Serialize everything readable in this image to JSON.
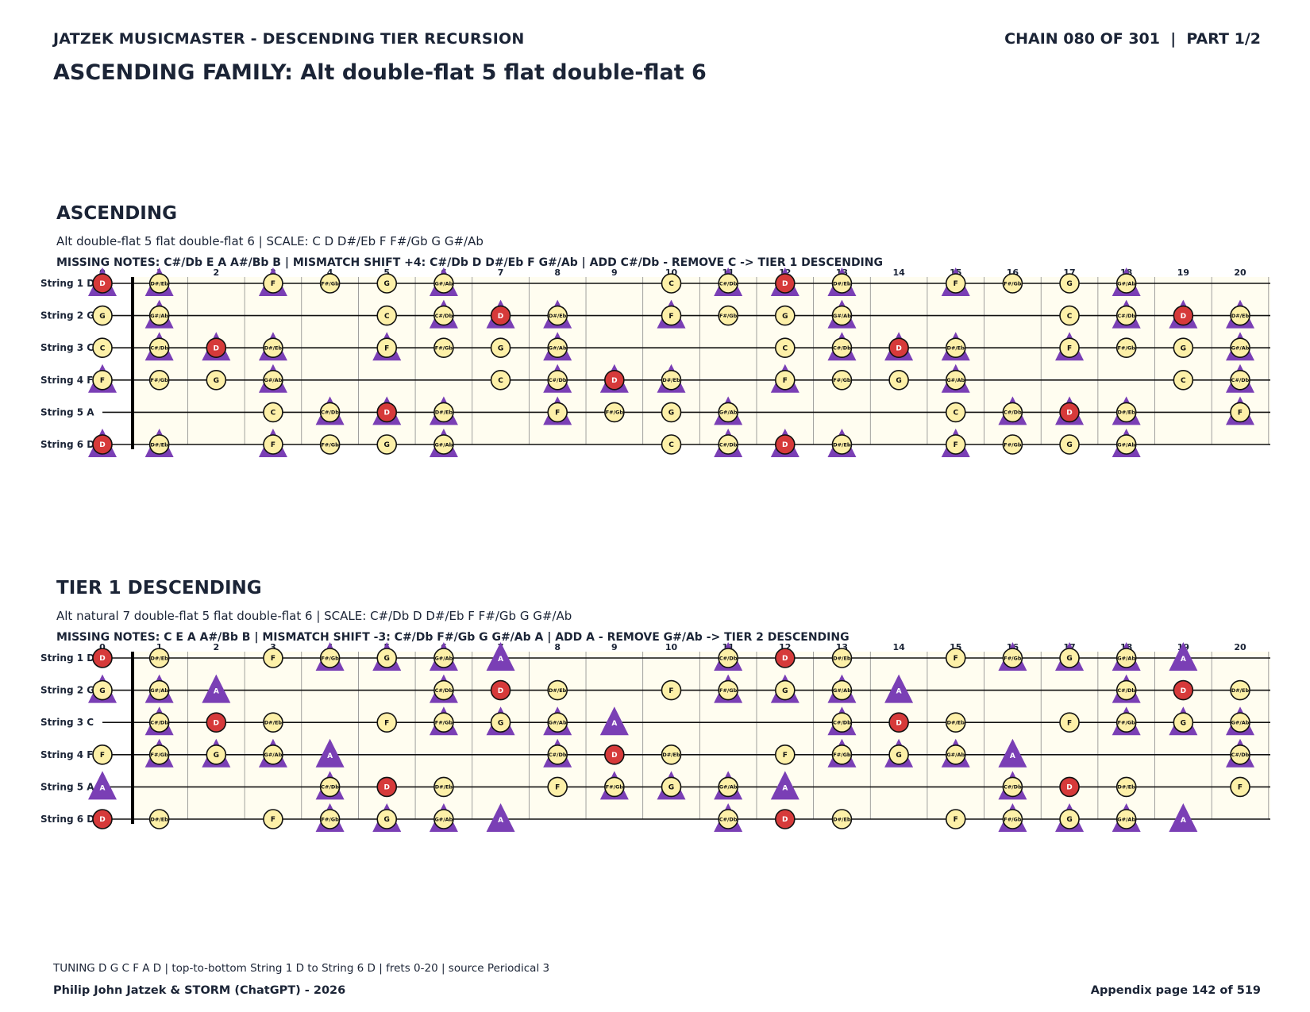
{
  "header": {
    "left": "JATZEK MUSICMASTER - DESCENDING TIER RECURSION",
    "right": "CHAIN 080 OF 301  |  PART 1/2",
    "family_title": "ASCENDING FAMILY: Alt double-flat 5 flat double-flat 6"
  },
  "fret_numbers": [
    "0",
    "1",
    "2",
    "3",
    "4",
    "5",
    "6",
    "7",
    "8",
    "9",
    "10",
    "11",
    "12",
    "13",
    "14",
    "15",
    "16",
    "17",
    "18",
    "19",
    "20"
  ],
  "colors": {
    "root": "#d63a3a",
    "note": "#fdf0a8",
    "marker": "#7a3fb5",
    "board": "#fffdf0",
    "ink": "#1b2436"
  },
  "sections": [
    {
      "title": "ASCENDING",
      "description": "Alt double-flat 5 flat double-flat 6  |  SCALE: C D D#/Eb F F#/Gb G G#/Ab",
      "missing": "MISSING NOTES: C#/Db E A A#/Bb B  |  MISMATCH SHIFT +4: C#/Db D D#/Eb F G#/Ab  |  ADD C#/Db - REMOVE C -> TIER 1 DESCENDING",
      "strings": [
        {
          "label": "String 1 D",
          "cells": [
            [
              "D",
              "T"
            ],
            [
              "D#/Eb",
              "T"
            ],
            [
              "",
              ""
            ],
            [
              "F",
              "T"
            ],
            [
              "F#/Gb",
              ""
            ],
            [
              "G",
              ""
            ],
            [
              "G#/Ab",
              "T"
            ],
            [
              "",
              ""
            ],
            [
              "",
              ""
            ],
            [
              "",
              ""
            ],
            [
              "C",
              ""
            ],
            [
              "C#/Db",
              "T"
            ],
            [
              "D",
              "T"
            ],
            [
              "D#/Eb",
              "T"
            ],
            [
              "",
              ""
            ],
            [
              "F",
              "T"
            ],
            [
              "F#/Gb",
              ""
            ],
            [
              "G",
              ""
            ],
            [
              "G#/Ab",
              "T"
            ],
            [
              "",
              ""
            ],
            [
              "",
              ""
            ]
          ]
        },
        {
          "label": "String 2 G",
          "cells": [
            [
              "G",
              ""
            ],
            [
              "G#/Ab",
              "T"
            ],
            [
              "",
              ""
            ],
            [
              "",
              ""
            ],
            [
              "",
              ""
            ],
            [
              "C",
              ""
            ],
            [
              "C#/Db",
              "T"
            ],
            [
              "D",
              "T"
            ],
            [
              "D#/Eb",
              "T"
            ],
            [
              "",
              ""
            ],
            [
              "F",
              "T"
            ],
            [
              "F#/Gb",
              ""
            ],
            [
              "G",
              ""
            ],
            [
              "G#/Ab",
              "T"
            ],
            [
              "",
              ""
            ],
            [
              "",
              ""
            ],
            [
              "",
              ""
            ],
            [
              "C",
              ""
            ],
            [
              "C#/Db",
              "T"
            ],
            [
              "D",
              "T"
            ],
            [
              "D#/Eb",
              "T"
            ]
          ]
        },
        {
          "label": "String 3 C",
          "cells": [
            [
              "C",
              ""
            ],
            [
              "C#/Db",
              "T"
            ],
            [
              "D",
              "T"
            ],
            [
              "D#/Eb",
              "T"
            ],
            [
              "",
              ""
            ],
            [
              "F",
              "T"
            ],
            [
              "F#/Gb",
              ""
            ],
            [
              "G",
              ""
            ],
            [
              "G#/Ab",
              "T"
            ],
            [
              "",
              ""
            ],
            [
              "",
              ""
            ],
            [
              "",
              ""
            ],
            [
              "C",
              ""
            ],
            [
              "C#/Db",
              "T"
            ],
            [
              "D",
              "T"
            ],
            [
              "D#/Eb",
              "T"
            ],
            [
              "",
              ""
            ],
            [
              "F",
              "T"
            ],
            [
              "F#/Gb",
              ""
            ],
            [
              "G",
              ""
            ],
            [
              "G#/Ab",
              "T"
            ]
          ]
        },
        {
          "label": "String 4 F",
          "cells": [
            [
              "F",
              "T"
            ],
            [
              "F#/Gb",
              ""
            ],
            [
              "G",
              ""
            ],
            [
              "G#/Ab",
              "T"
            ],
            [
              "",
              ""
            ],
            [
              "",
              ""
            ],
            [
              "",
              ""
            ],
            [
              "C",
              ""
            ],
            [
              "C#/Db",
              "T"
            ],
            [
              "D",
              "T"
            ],
            [
              "D#/Eb",
              "T"
            ],
            [
              "",
              ""
            ],
            [
              "F",
              "T"
            ],
            [
              "F#/Gb",
              ""
            ],
            [
              "G",
              ""
            ],
            [
              "G#/Ab",
              "T"
            ],
            [
              "",
              ""
            ],
            [
              "",
              ""
            ],
            [
              "",
              ""
            ],
            [
              "C",
              ""
            ],
            [
              "C#/Db",
              "T"
            ]
          ]
        },
        {
          "label": "String 5 A",
          "cells": [
            [
              "",
              ""
            ],
            [
              "",
              ""
            ],
            [
              "",
              ""
            ],
            [
              "C",
              ""
            ],
            [
              "C#/Db",
              "T"
            ],
            [
              "D",
              "T"
            ],
            [
              "D#/Eb",
              "T"
            ],
            [
              "",
              ""
            ],
            [
              "F",
              "T"
            ],
            [
              "F#/Gb",
              ""
            ],
            [
              "G",
              ""
            ],
            [
              "G#/Ab",
              "T"
            ],
            [
              "",
              ""
            ],
            [
              "",
              ""
            ],
            [
              "",
              ""
            ],
            [
              "C",
              ""
            ],
            [
              "C#/Db",
              "T"
            ],
            [
              "D",
              "T"
            ],
            [
              "D#/Eb",
              "T"
            ],
            [
              "",
              ""
            ],
            [
              "F",
              "T"
            ]
          ]
        },
        {
          "label": "String 6 D",
          "cells": [
            [
              "D",
              "T"
            ],
            [
              "D#/Eb",
              "T"
            ],
            [
              "",
              ""
            ],
            [
              "F",
              "T"
            ],
            [
              "F#/Gb",
              ""
            ],
            [
              "G",
              ""
            ],
            [
              "G#/Ab",
              "T"
            ],
            [
              "",
              ""
            ],
            [
              "",
              ""
            ],
            [
              "",
              ""
            ],
            [
              "C",
              ""
            ],
            [
              "C#/Db",
              "T"
            ],
            [
              "D",
              "T"
            ],
            [
              "D#/Eb",
              "T"
            ],
            [
              "",
              ""
            ],
            [
              "F",
              "T"
            ],
            [
              "F#/Gb",
              ""
            ],
            [
              "G",
              ""
            ],
            [
              "G#/Ab",
              "T"
            ],
            [
              "",
              ""
            ],
            [
              "",
              ""
            ]
          ]
        }
      ]
    },
    {
      "title": "TIER 1 DESCENDING",
      "description": "Alt natural 7 double-flat 5 flat double-flat 6  |  SCALE: C#/Db D D#/Eb F F#/Gb G G#/Ab",
      "missing": "MISSING NOTES: C E A A#/Bb B  |  MISMATCH SHIFT -3: C#/Db F#/Gb G G#/Ab A  |  ADD A - REMOVE G#/Ab -> TIER 2 DESCENDING",
      "strings": [
        {
          "label": "String 1 D",
          "cells": [
            [
              "D",
              ""
            ],
            [
              "D#/Eb",
              ""
            ],
            [
              "",
              ""
            ],
            [
              "F",
              ""
            ],
            [
              "F#/Gb",
              "T"
            ],
            [
              "G",
              "T"
            ],
            [
              "G#/Ab",
              "T"
            ],
            [
              "A",
              "T"
            ],
            [
              "",
              ""
            ],
            [
              "",
              ""
            ],
            [
              "",
              ""
            ],
            [
              "C#/Db",
              "T"
            ],
            [
              "D",
              ""
            ],
            [
              "D#/Eb",
              ""
            ],
            [
              "",
              ""
            ],
            [
              "F",
              ""
            ],
            [
              "F#/Gb",
              "T"
            ],
            [
              "G",
              "T"
            ],
            [
              "G#/Ab",
              "T"
            ],
            [
              "A",
              "T"
            ],
            [
              "",
              ""
            ]
          ]
        },
        {
          "label": "String 2 G",
          "cells": [
            [
              "G",
              "T"
            ],
            [
              "G#/Ab",
              "T"
            ],
            [
              "A",
              "T"
            ],
            [
              "",
              ""
            ],
            [
              "",
              ""
            ],
            [
              "",
              ""
            ],
            [
              "C#/Db",
              "T"
            ],
            [
              "D",
              ""
            ],
            [
              "D#/Eb",
              ""
            ],
            [
              "",
              ""
            ],
            [
              "F",
              ""
            ],
            [
              "F#/Gb",
              "T"
            ],
            [
              "G",
              "T"
            ],
            [
              "G#/Ab",
              "T"
            ],
            [
              "A",
              "T"
            ],
            [
              "",
              ""
            ],
            [
              "",
              ""
            ],
            [
              "",
              ""
            ],
            [
              "C#/Db",
              "T"
            ],
            [
              "D",
              ""
            ],
            [
              "D#/Eb",
              ""
            ]
          ]
        },
        {
          "label": "String 3 C",
          "cells": [
            [
              "",
              ""
            ],
            [
              "C#/Db",
              "T"
            ],
            [
              "D",
              ""
            ],
            [
              "D#/Eb",
              ""
            ],
            [
              "",
              ""
            ],
            [
              "F",
              ""
            ],
            [
              "F#/Gb",
              "T"
            ],
            [
              "G",
              "T"
            ],
            [
              "G#/Ab",
              "T"
            ],
            [
              "A",
              "T"
            ],
            [
              "",
              ""
            ],
            [
              "",
              ""
            ],
            [
              "",
              ""
            ],
            [
              "C#/Db",
              "T"
            ],
            [
              "D",
              ""
            ],
            [
              "D#/Eb",
              ""
            ],
            [
              "",
              ""
            ],
            [
              "F",
              ""
            ],
            [
              "F#/Gb",
              "T"
            ],
            [
              "G",
              "T"
            ],
            [
              "G#/Ab",
              "T"
            ]
          ]
        },
        {
          "label": "String 4 F",
          "cells": [
            [
              "F",
              ""
            ],
            [
              "F#/Gb",
              "T"
            ],
            [
              "G",
              "T"
            ],
            [
              "G#/Ab",
              "T"
            ],
            [
              "A",
              "T"
            ],
            [
              "",
              ""
            ],
            [
              "",
              ""
            ],
            [
              "",
              ""
            ],
            [
              "C#/Db",
              "T"
            ],
            [
              "D",
              ""
            ],
            [
              "D#/Eb",
              ""
            ],
            [
              "",
              ""
            ],
            [
              "F",
              ""
            ],
            [
              "F#/Gb",
              "T"
            ],
            [
              "G",
              "T"
            ],
            [
              "G#/Ab",
              "T"
            ],
            [
              "A",
              "T"
            ],
            [
              "",
              ""
            ],
            [
              "",
              ""
            ],
            [
              "",
              ""
            ],
            [
              "C#/Db",
              "T"
            ]
          ]
        },
        {
          "label": "String 5 A",
          "cells": [
            [
              "A",
              "T"
            ],
            [
              "",
              ""
            ],
            [
              "",
              ""
            ],
            [
              "",
              ""
            ],
            [
              "C#/Db",
              "T"
            ],
            [
              "D",
              ""
            ],
            [
              "D#/Eb",
              ""
            ],
            [
              "",
              ""
            ],
            [
              "F",
              ""
            ],
            [
              "F#/Gb",
              "T"
            ],
            [
              "G",
              "T"
            ],
            [
              "G#/Ab",
              "T"
            ],
            [
              "A",
              "T"
            ],
            [
              "",
              ""
            ],
            [
              "",
              ""
            ],
            [
              "",
              ""
            ],
            [
              "C#/Db",
              "T"
            ],
            [
              "D",
              ""
            ],
            [
              "D#/Eb",
              ""
            ],
            [
              "",
              ""
            ],
            [
              "F",
              ""
            ]
          ]
        },
        {
          "label": "String 6 D",
          "cells": [
            [
              "D",
              ""
            ],
            [
              "D#/Eb",
              ""
            ],
            [
              "",
              ""
            ],
            [
              "F",
              ""
            ],
            [
              "F#/Gb",
              "T"
            ],
            [
              "G",
              "T"
            ],
            [
              "G#/Ab",
              "T"
            ],
            [
              "A",
              "T"
            ],
            [
              "",
              ""
            ],
            [
              "",
              ""
            ],
            [
              "",
              ""
            ],
            [
              "C#/Db",
              "T"
            ],
            [
              "D",
              ""
            ],
            [
              "D#/Eb",
              ""
            ],
            [
              "",
              ""
            ],
            [
              "F",
              ""
            ],
            [
              "F#/Gb",
              "T"
            ],
            [
              "G",
              "T"
            ],
            [
              "G#/Ab",
              "T"
            ],
            [
              "A",
              "T"
            ],
            [
              "",
              ""
            ]
          ]
        }
      ]
    }
  ],
  "footer": {
    "tuning": "TUNING D G C F A D | top-to-bottom String 1 D to String 6 D | frets 0-20 | source Periodical 3",
    "credit": "Philip John Jatzek & STORM (ChatGPT) - 2026",
    "page": "Appendix page 142 of 519"
  }
}
